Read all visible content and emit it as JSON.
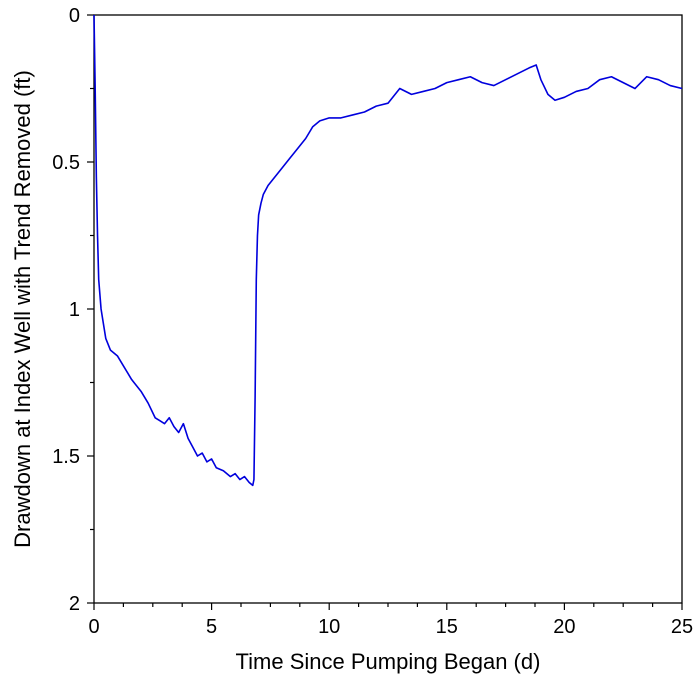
{
  "chart_data": {
    "type": "line",
    "title": "",
    "xlabel": "Time Since Pumping Began (d)",
    "ylabel": "Drawdown at Index Well with Trend Removed (ft)",
    "xlim": [
      0,
      25
    ],
    "ylim": [
      0,
      2
    ],
    "y_inverted": true,
    "grid": false,
    "legend": "none",
    "x_ticks": [
      0,
      5,
      10,
      15,
      20,
      25
    ],
    "x_tick_labels": [
      "0",
      "5",
      "10",
      "15",
      "20",
      "25"
    ],
    "y_ticks": [
      0,
      0.5,
      1,
      1.5,
      2
    ],
    "y_tick_labels": [
      "0",
      "0.5",
      "1",
      "1.5",
      "2"
    ],
    "series": [
      {
        "color": "#0000dd",
        "x": [
          0,
          0.05,
          0.1,
          0.15,
          0.2,
          0.3,
          0.4,
          0.5,
          0.7,
          1.0,
          1.3,
          1.6,
          2.0,
          2.3,
          2.6,
          2.8,
          3.0,
          3.2,
          3.4,
          3.6,
          3.8,
          4.0,
          4.2,
          4.4,
          4.6,
          4.8,
          5.0,
          5.2,
          5.5,
          5.8,
          6.0,
          6.2,
          6.4,
          6.6,
          6.75,
          6.8,
          6.85,
          6.9,
          6.95,
          7.0,
          7.1,
          7.2,
          7.4,
          7.6,
          7.8,
          8.0,
          8.3,
          8.6,
          9.0,
          9.3,
          9.6,
          10.0,
          10.5,
          11.0,
          11.5,
          12.0,
          12.5,
          13.0,
          13.5,
          14.0,
          14.5,
          15.0,
          15.5,
          16.0,
          16.5,
          17.0,
          17.5,
          18.0,
          18.5,
          18.8,
          19.0,
          19.3,
          19.6,
          20.0,
          20.5,
          21.0,
          21.5,
          22.0,
          22.5,
          23.0,
          23.5,
          24.0,
          24.5,
          25.0
        ],
        "values": [
          0,
          0.25,
          0.55,
          0.75,
          0.9,
          1.0,
          1.05,
          1.1,
          1.14,
          1.16,
          1.2,
          1.24,
          1.28,
          1.32,
          1.37,
          1.38,
          1.39,
          1.37,
          1.4,
          1.42,
          1.39,
          1.44,
          1.47,
          1.5,
          1.49,
          1.52,
          1.51,
          1.54,
          1.55,
          1.57,
          1.56,
          1.58,
          1.57,
          1.59,
          1.6,
          1.58,
          1.3,
          0.9,
          0.75,
          0.68,
          0.64,
          0.61,
          0.58,
          0.56,
          0.54,
          0.52,
          0.49,
          0.46,
          0.42,
          0.38,
          0.36,
          0.35,
          0.35,
          0.34,
          0.33,
          0.31,
          0.3,
          0.25,
          0.27,
          0.26,
          0.25,
          0.23,
          0.22,
          0.21,
          0.23,
          0.24,
          0.22,
          0.2,
          0.18,
          0.17,
          0.22,
          0.27,
          0.29,
          0.28,
          0.26,
          0.25,
          0.22,
          0.21,
          0.23,
          0.25,
          0.21,
          0.22,
          0.24,
          0.25
        ]
      }
    ]
  }
}
